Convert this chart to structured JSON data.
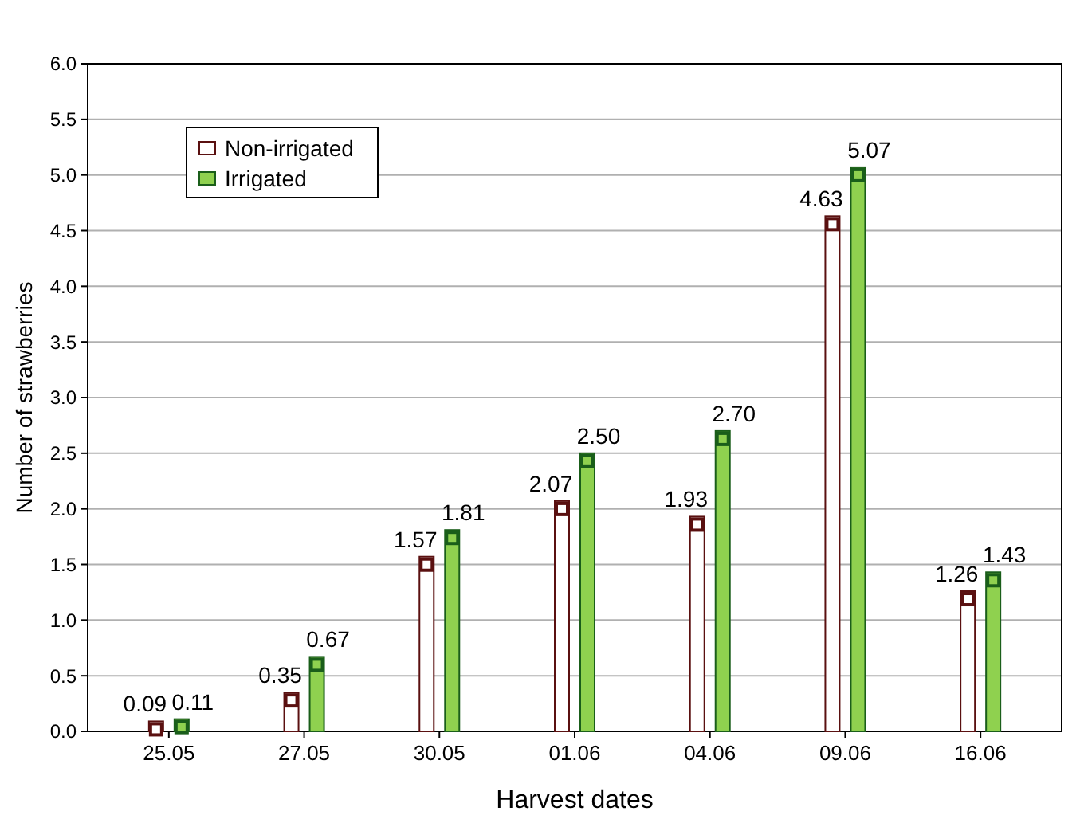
{
  "chart_data": {
    "type": "bar",
    "xlabel": "Harvest dates",
    "ylabel": "Number of strawberries",
    "categories": [
      "25.05",
      "27.05",
      "30.05",
      "01.06",
      "04.06",
      "09.06",
      "16.06"
    ],
    "series": [
      {
        "name": "Non-irrigated",
        "color": "#ffffff",
        "values": [
          0.09,
          0.35,
          1.57,
          2.07,
          1.93,
          4.63,
          1.26
        ],
        "value_labels": [
          "0.09",
          "0.35",
          "1.57",
          "2.07",
          "1.93",
          "4.63",
          "1.26"
        ]
      },
      {
        "name": "Irrigated",
        "color": "#8fd14f",
        "values": [
          0.11,
          0.67,
          1.81,
          2.5,
          2.7,
          5.07,
          1.43
        ],
        "value_labels": [
          "0.11",
          "0.67",
          "1.81",
          "2.50",
          "2.70",
          "5.07",
          "1.43"
        ]
      }
    ],
    "ylim": [
      0,
      6
    ],
    "yticks": [
      {
        "value": 0,
        "label": "0.0"
      },
      {
        "value": 0.5,
        "label": "0.5"
      },
      {
        "value": 1,
        "label": "1.0"
      },
      {
        "value": 1.5,
        "label": "1.5"
      },
      {
        "value": 2,
        "label": "2.0"
      },
      {
        "value": 2.5,
        "label": "2.5"
      },
      {
        "value": 3,
        "label": "3.0"
      },
      {
        "value": 3.5,
        "label": "3.5"
      },
      {
        "value": 4,
        "label": "4.0"
      },
      {
        "value": 4.5,
        "label": "4.5"
      },
      {
        "value": 5,
        "label": "5.0"
      },
      {
        "value": 5.5,
        "label": "5.5"
      },
      {
        "value": 6,
        "label": "6.0"
      }
    ],
    "grid": "y",
    "legend": "top left",
    "marker": "square"
  }
}
